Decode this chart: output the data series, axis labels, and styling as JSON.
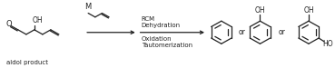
{
  "bg_color": "#ffffff",
  "line_color": "#222222",
  "text_color": "#222222",
  "figsize": [
    3.69,
    0.75
  ],
  "dpi": 100,
  "arrow_text_lines": [
    "RCM",
    "Dehydration",
    "Oxidation",
    "Tautomerization"
  ],
  "label_aldol": "aldol product",
  "label_or1": "or",
  "label_or2": "or",
  "label_M": "M",
  "label_OH": "OH",
  "label_OH2": "OH",
  "label_HO": "HO"
}
